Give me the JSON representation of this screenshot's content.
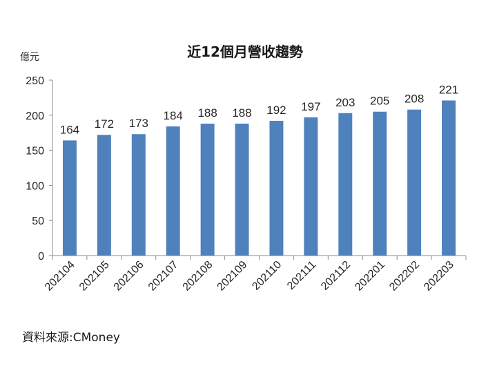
{
  "source": "資料來源:CMoney",
  "chart_data": {
    "type": "bar",
    "title": "近12個月營收趨勢",
    "ylabel": "億元",
    "xlabel": "",
    "ylim": [
      0,
      250
    ],
    "yticks": [
      0,
      50,
      100,
      150,
      200,
      250
    ],
    "categories": [
      "202104",
      "202105",
      "202106",
      "202107",
      "202108",
      "202109",
      "202110",
      "202111",
      "202112",
      "202201",
      "202202",
      "202203"
    ],
    "values": [
      164,
      172,
      173,
      184,
      188,
      188,
      192,
      197,
      203,
      205,
      208,
      221
    ],
    "bar_color": "#4f81bd",
    "grid": false,
    "legend": "none"
  }
}
